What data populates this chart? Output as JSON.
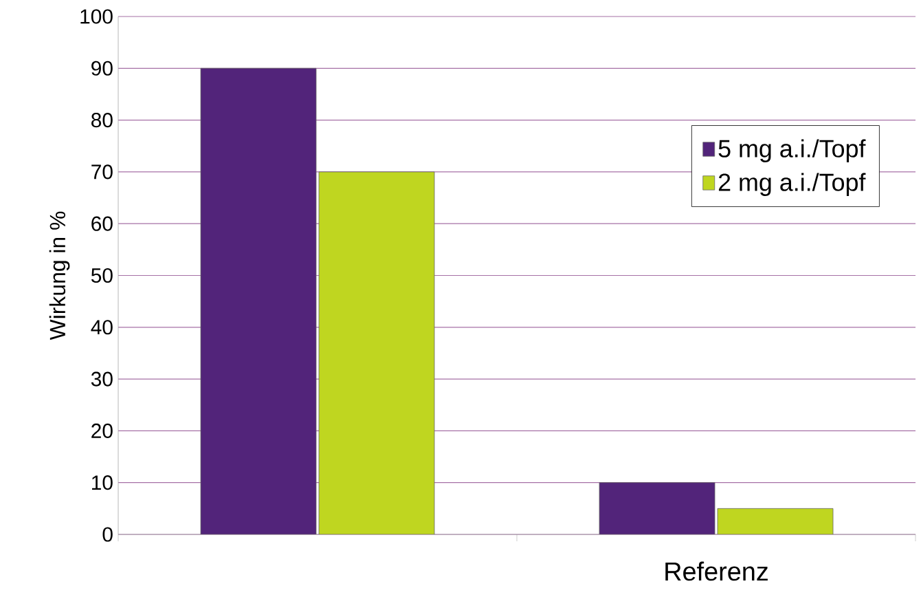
{
  "chart_data": {
    "type": "bar",
    "ylabel": "Wirkung in %",
    "categories": [
      null,
      "Referenz"
    ],
    "series": [
      {
        "name": "5 mg a.i./Topf",
        "color": "#52247a",
        "values": [
          90,
          10
        ]
      },
      {
        "name": "2 mg a.i./Topf",
        "color": "#bfd620",
        "values": [
          70,
          5
        ]
      }
    ],
    "ylim": [
      0,
      100
    ],
    "yticks": [
      0,
      10,
      20,
      30,
      40,
      50,
      60,
      70,
      80,
      90,
      100
    ],
    "grid": "y",
    "legend": "top right"
  }
}
